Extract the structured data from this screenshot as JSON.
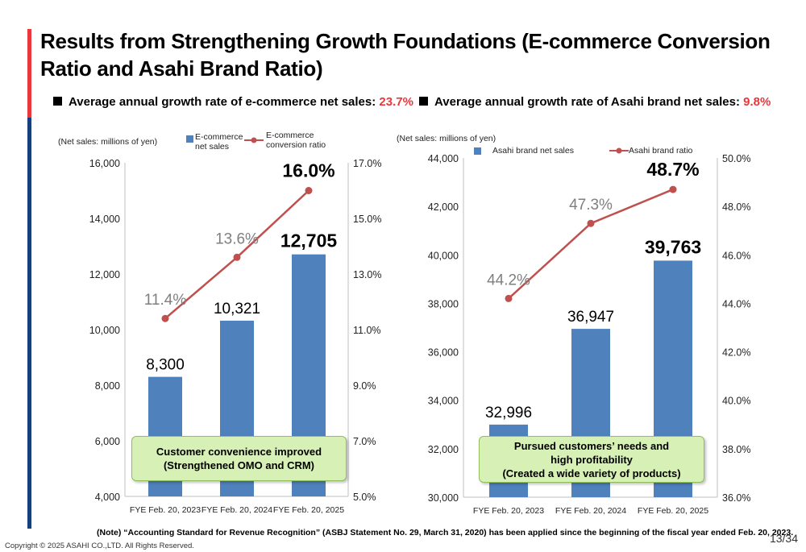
{
  "title": "Results from Strengthening Growth Foundations (E-commerce Conversion Ratio and Asahi Brand Ratio)",
  "left_panel": {
    "heading": "Average annual growth rate of e-commerce net sales: ",
    "rate": "23.7%",
    "callout": "Customer convenience improved\n(Strengthened OMO and CRM)"
  },
  "right_panel": {
    "heading": "Average annual growth rate of Asahi brand net sales: ",
    "rate": "9.8%",
    "callout": "Pursued customers’ needs and\nhigh profitability\n(Created a wide variety of products)"
  },
  "note": "(Note) “Accounting Standard for Revenue Recognition” (ASBJ Statement No. 29, March 31, 2020) has been applied since the beginning of the fiscal year ended Feb. 20, 2023.",
  "copyright": "Copyright © 2025 ASAHI CO.,LTD. All Rights Reserved.",
  "page_number": "13/34",
  "colors": {
    "bar": "#4f81bd",
    "line": "#c0504d",
    "accent_red": "#e8383d",
    "accent_blue": "#173e7d"
  },
  "chart_data": [
    {
      "type": "bar+line",
      "ylabel": "(Net sales: millions of yen)",
      "categories": [
        "FYE Feb. 20, 2023",
        "FYE Feb. 20, 2024",
        "FYE Feb. 20, 2025"
      ],
      "series": [
        {
          "name": "E-commerce net sales",
          "type": "bar",
          "axis": "left",
          "values": [
            8300,
            10321,
            12705
          ],
          "labels": [
            "8,300",
            "10,321",
            "12,705"
          ]
        },
        {
          "name": "E-commerce conversion ratio",
          "type": "line",
          "axis": "right",
          "values": [
            11.4,
            13.6,
            16.0
          ],
          "labels": [
            "11.4%",
            "13.6%",
            "16.0%"
          ]
        }
      ],
      "ylim": [
        4000,
        16000
      ],
      "yticks": [
        "4,000",
        "6,000",
        "8,000",
        "10,000",
        "12,000",
        "14,000",
        "16,000"
      ],
      "y2lim": [
        5.0,
        17.0
      ],
      "y2ticks": [
        "5.0%",
        "7.0%",
        "9.0%",
        "11.0%",
        "13.0%",
        "15.0%",
        "17.0%"
      ],
      "legend": "top"
    },
    {
      "type": "bar+line",
      "ylabel": "(Net sales: millions of yen)",
      "categories": [
        "FYE Feb. 20, 2023",
        "FYE Feb. 20, 2024",
        "FYE Feb. 20, 2025"
      ],
      "series": [
        {
          "name": "Asahi brand net sales",
          "type": "bar",
          "axis": "left",
          "values": [
            32996,
            36947,
            39763
          ],
          "labels": [
            "32,996",
            "36,947",
            "39,763"
          ]
        },
        {
          "name": "Asahi brand ratio",
          "type": "line",
          "axis": "right",
          "values": [
            44.2,
            47.3,
            48.7
          ],
          "labels": [
            "44.2%",
            "47.3%",
            "48.7%"
          ]
        }
      ],
      "ylim": [
        30000,
        44000
      ],
      "yticks": [
        "30,000",
        "32,000",
        "34,000",
        "36,000",
        "38,000",
        "40,000",
        "42,000",
        "44,000"
      ],
      "y2lim": [
        36.0,
        50.0
      ],
      "y2ticks": [
        "36.0%",
        "38.0%",
        "40.0%",
        "42.0%",
        "44.0%",
        "46.0%",
        "48.0%",
        "50.0%"
      ],
      "legend": "top"
    }
  ]
}
